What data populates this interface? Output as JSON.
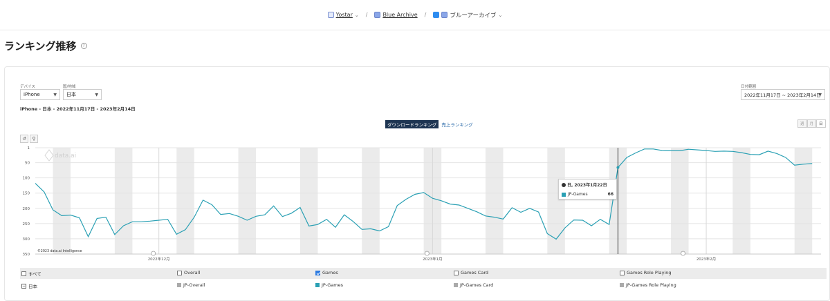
{
  "breadcrumb": {
    "publisher": "Yostar",
    "game": "Blue Archive",
    "app": "ブルーアーカイブ"
  },
  "page_title": "ランキング推移",
  "filters": {
    "device_label": "デバイス",
    "device_value": "iPhone",
    "country_label": "国/地域",
    "country_value": "日本",
    "date_label": "日付範囲",
    "date_value": "2022年11月17日 ~ 2023年2月14日",
    "summary": "iPhone - 日本 - 2022年11月17日 - 2023年2月14日"
  },
  "tabs": {
    "download": "ダウンロードランキング",
    "revenue": "売上ランキング"
  },
  "granularity": {
    "week": "週",
    "month": "月",
    "day": "日"
  },
  "watermark": "data.ai",
  "copyright": "©2023 data.ai Intelligence",
  "tooltip": {
    "date": "日, 2023年1月22日",
    "series": "JP-Games",
    "value": "66"
  },
  "legend": {
    "all": "すべて",
    "region": "日本",
    "categories": [
      {
        "label": "Overall",
        "series": "JP-Overall",
        "checked": false,
        "color": "#aaaaaa"
      },
      {
        "label": "Games",
        "series": "JP-Games",
        "checked": true,
        "color": "#2aa0b4"
      },
      {
        "label": "Games Card",
        "series": "JP-Games Card",
        "checked": false,
        "color": "#aaaaaa"
      },
      {
        "label": "Games Role Playing",
        "series": "JP-Games Role Playing",
        "checked": false,
        "color": "#aaaaaa"
      }
    ]
  },
  "chart_data": {
    "type": "line",
    "x_start": "2022-11-17",
    "x_end": "2023-02-14",
    "ylim": [
      350,
      1
    ],
    "yticks": [
      1,
      50,
      100,
      150,
      200,
      250,
      300,
      350
    ],
    "xtick_labels": [
      "2022年12月",
      "2023年1月",
      "2023年2月"
    ],
    "xtick_dates": [
      "2022-12-01",
      "2023-01-01",
      "2023-02-01"
    ],
    "weekend_shading": true,
    "series": [
      {
        "name": "JP-Games",
        "color": "#2aa0b4",
        "values": [
          118,
          146,
          205,
          224,
          222,
          231,
          293,
          233,
          229,
          286,
          257,
          244,
          244,
          242,
          239,
          236,
          285,
          270,
          229,
          173,
          188,
          220,
          217,
          226,
          239,
          226,
          221,
          192,
          227,
          216,
          197,
          258,
          253,
          236,
          262,
          221,
          243,
          269,
          267,
          274,
          260,
          191,
          170,
          154,
          148,
          167,
          175,
          186,
          189,
          200,
          211,
          225,
          229,
          235,
          198,
          213,
          200,
          212,
          283,
          301,
          264,
          238,
          239,
          257,
          236,
          253,
          66,
          33,
          18,
          5,
          5,
          10,
          11,
          11,
          6,
          8,
          10,
          13,
          12,
          13,
          17,
          23,
          24,
          12,
          20,
          33,
          58,
          55,
          53
        ]
      }
    ],
    "highlighted_point": {
      "x": "2023-01-22",
      "y": 66
    }
  }
}
